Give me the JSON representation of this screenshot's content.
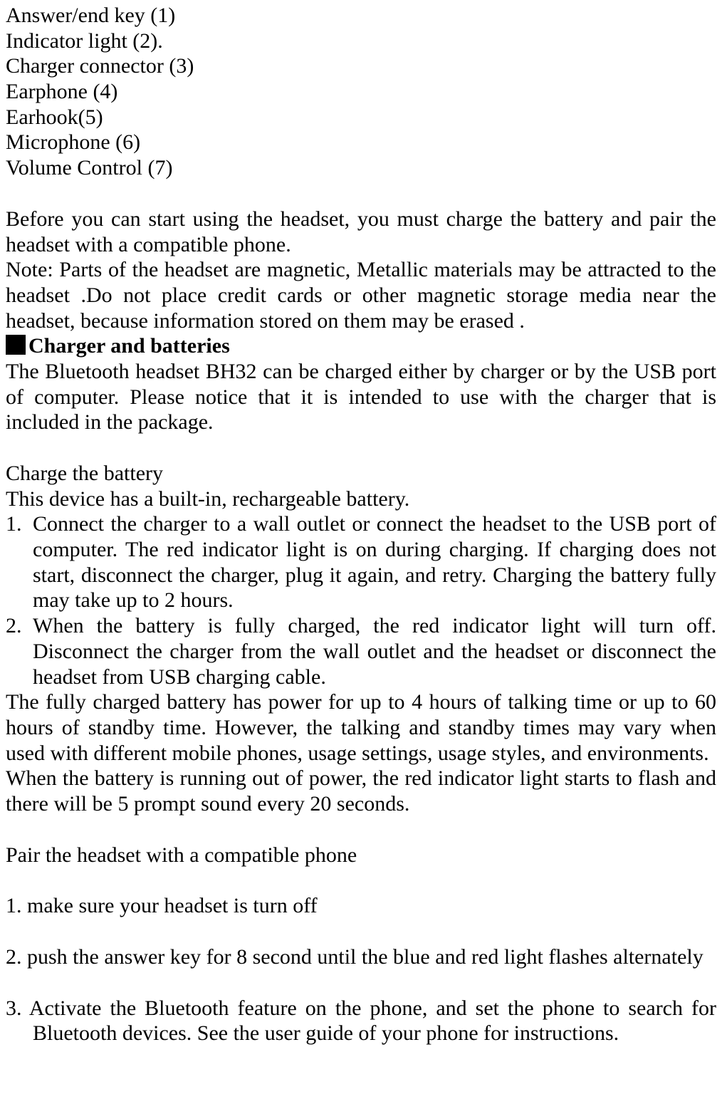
{
  "parts_list": [
    "Answer/end key (1)",
    "Indicator light (2).",
    "Charger connector (3)",
    "Earphone (4)",
    "Earhook(5)",
    "Microphone (6)",
    "Volume Control (7)"
  ],
  "intro_lines": [
    "Before you can start using the headset, you must charge the battery and pair the headset with a compatible phone.",
    "Note: Parts of the headset are magnetic, Metallic materials may be attracted to the headset .Do not place credit cards or other magnetic storage media near the headset, because information stored on them may be erased ."
  ],
  "section1": {
    "heading": "Charger and batteries",
    "body": "The Bluetooth headset BH32 can be charged either by charger or by the USB port of computer. Please notice that it is intended to use with the charger that is included in the package."
  },
  "charge": {
    "title": "Charge the battery",
    "intro": "This device has a built-in, rechargeable battery.",
    "steps": [
      {
        "num": "1.",
        "text": "Connect the charger to a wall outlet or connect the headset to the USB port of computer. The red indicator light is on during charging. If charging does not start, disconnect the charger, plug it again, and retry. Charging the battery fully may take up to 2 hours."
      },
      {
        "num": "2.",
        "text": "When the battery is fully charged, the red indicator light will turn off. Disconnect the charger from the wall outlet and the headset or disconnect the headset from USB charging cable."
      }
    ],
    "after": [
      "The fully charged battery has power for up to 4 hours of talking time or up to 60 hours of standby time. However, the talking and standby times may vary when used with different mobile phones, usage settings, usage styles, and environments.",
      "When the battery is running out of power, the red indicator light starts to flash and there will be 5 prompt sound every 20 seconds."
    ]
  },
  "pair": {
    "title": "Pair the headset with a compatible phone",
    "steps": [
      "1. make sure your headset is turn off",
      "2. push the answer key for 8 second until the blue and red light flashes alternately",
      "3. Activate the Bluetooth feature on the phone, and set the phone to search for Bluetooth devices. See the user guide of your phone for instructions."
    ]
  }
}
